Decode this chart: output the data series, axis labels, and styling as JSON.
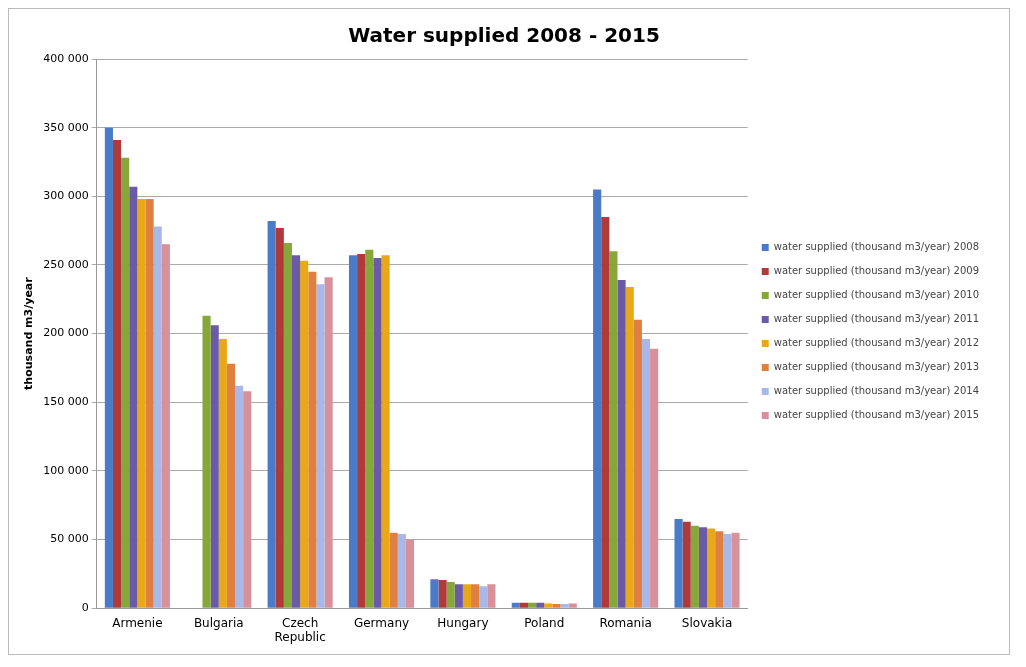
{
  "chart_data": {
    "type": "bar",
    "title": "Water supplied 2008 - 2015",
    "ylabel": "thousand m3/year",
    "categories": [
      "Armenie",
      "Bulgaria",
      "Czech Republic",
      "Germany",
      "Hungary",
      "Poland",
      "Romania",
      "Slovakia"
    ],
    "series": [
      {
        "name": "water supplied (thousand m3/year) 2008",
        "color": "#4a7bc8",
        "values": [
          350000,
          null,
          282000,
          257000,
          21000,
          4000,
          305000,
          65000
        ]
      },
      {
        "name": "water supplied (thousand m3/year) 2009",
        "color": "#b03a3a",
        "values": [
          341000,
          null,
          277000,
          258000,
          20500,
          4000,
          285000,
          63000
        ]
      },
      {
        "name": "water supplied (thousand m3/year) 2010",
        "color": "#86a83a",
        "values": [
          328000,
          213000,
          266000,
          261000,
          19000,
          4000,
          260000,
          60000
        ]
      },
      {
        "name": "water supplied (thousand m3/year) 2011",
        "color": "#6a5aa8",
        "values": [
          307000,
          206000,
          257000,
          255000,
          17500,
          4000,
          239000,
          59000
        ]
      },
      {
        "name": "water supplied (thousand m3/year) 2012",
        "color": "#e8a818",
        "values": [
          298000,
          196000,
          253000,
          257000,
          17500,
          3500,
          234000,
          58000
        ]
      },
      {
        "name": "water supplied (thousand m3/year) 2013",
        "color": "#e08040",
        "values": [
          298000,
          178000,
          245000,
          55000,
          17500,
          3000,
          210000,
          56000
        ]
      },
      {
        "name": "water supplied (thousand m3/year) 2014",
        "color": "#a8b8e8",
        "values": [
          278000,
          162000,
          236000,
          54000,
          16000,
          3000,
          196000,
          54000
        ]
      },
      {
        "name": "water supplied (thousand m3/year) 2015",
        "color": "#d8909a",
        "values": [
          265000,
          158000,
          241000,
          50000,
          17500,
          3500,
          189000,
          55000
        ]
      }
    ],
    "ylim": [
      0,
      400000
    ],
    "yticks": [
      {
        "value": 0,
        "label": "0"
      },
      {
        "value": 50000,
        "label": "50 000"
      },
      {
        "value": 100000,
        "label": "100 000"
      },
      {
        "value": 150000,
        "label": "150 000"
      },
      {
        "value": 200000,
        "label": "200 000"
      },
      {
        "value": 250000,
        "label": "250 000"
      },
      {
        "value": 300000,
        "label": "300 000"
      },
      {
        "value": 350000,
        "label": "350 000"
      },
      {
        "value": 400000,
        "label": "400 000"
      }
    ],
    "grid": "y",
    "legend": "right"
  }
}
